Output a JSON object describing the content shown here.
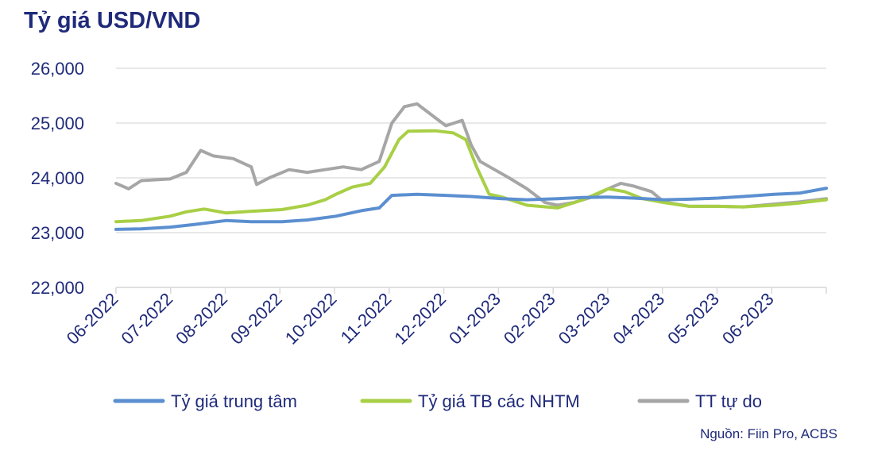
{
  "chart_data": {
    "type": "line",
    "title": "Tỷ giá USD/VND",
    "source": "Nguồn: Fiin Pro, ACBS",
    "ylim": [
      22000,
      26000
    ],
    "y_ticks": [
      "22,000",
      "23,000",
      "24,000",
      "25,000",
      "26,000"
    ],
    "y_tick_values": [
      22000,
      23000,
      24000,
      25000,
      26000
    ],
    "x_ticks": [
      "06-2022",
      "07-2022",
      "08-2022",
      "09-2022",
      "10-2022",
      "11-2022",
      "12-2022",
      "01-2023",
      "02-2023",
      "03-2023",
      "04-2023",
      "05-2023",
      "06-2023"
    ],
    "xlim": [
      "2022-06-01",
      "2023-06-30"
    ],
    "grid": true,
    "legend_position": "bottom",
    "colors": {
      "central": "#5b8fd0",
      "nhtm": "#a8cf45",
      "free": "#a6a6a6",
      "text": "#1f2a7a",
      "grid": "#d9d9d9"
    },
    "series": [
      {
        "name": "Tỷ giá trung tâm",
        "points": [
          [
            "2022-06-01",
            23060
          ],
          [
            "2022-06-15",
            23070
          ],
          [
            "2022-07-01",
            23100
          ],
          [
            "2022-07-15",
            23150
          ],
          [
            "2022-08-01",
            23220
          ],
          [
            "2022-08-15",
            23200
          ],
          [
            "2022-09-01",
            23200
          ],
          [
            "2022-09-15",
            23230
          ],
          [
            "2022-10-01",
            23300
          ],
          [
            "2022-10-15",
            23400
          ],
          [
            "2022-10-25",
            23450
          ],
          [
            "2022-11-01",
            23680
          ],
          [
            "2022-11-15",
            23700
          ],
          [
            "2022-12-01",
            23680
          ],
          [
            "2022-12-15",
            23660
          ],
          [
            "2023-01-01",
            23620
          ],
          [
            "2023-01-15",
            23600
          ],
          [
            "2023-02-01",
            23620
          ],
          [
            "2023-02-15",
            23640
          ],
          [
            "2023-03-01",
            23650
          ],
          [
            "2023-03-15",
            23630
          ],
          [
            "2023-04-01",
            23600
          ],
          [
            "2023-04-15",
            23610
          ],
          [
            "2023-05-01",
            23630
          ],
          [
            "2023-05-15",
            23660
          ],
          [
            "2023-06-01",
            23700
          ],
          [
            "2023-06-15",
            23720
          ],
          [
            "2023-06-30",
            23810
          ]
        ]
      },
      {
        "name": "Tỷ giá TB các NHTM",
        "points": [
          [
            "2022-06-01",
            23200
          ],
          [
            "2022-06-15",
            23220
          ],
          [
            "2022-07-01",
            23300
          ],
          [
            "2022-07-10",
            23380
          ],
          [
            "2022-07-20",
            23430
          ],
          [
            "2022-08-01",
            23360
          ],
          [
            "2022-08-15",
            23390
          ],
          [
            "2022-09-01",
            23420
          ],
          [
            "2022-09-15",
            23500
          ],
          [
            "2022-09-25",
            23600
          ],
          [
            "2022-10-01",
            23700
          ],
          [
            "2022-10-10",
            23830
          ],
          [
            "2022-10-20",
            23900
          ],
          [
            "2022-10-28",
            24200
          ],
          [
            "2022-11-05",
            24700
          ],
          [
            "2022-11-10",
            24850
          ],
          [
            "2022-11-25",
            24860
          ],
          [
            "2022-12-05",
            24820
          ],
          [
            "2022-12-12",
            24700
          ],
          [
            "2022-12-18",
            24200
          ],
          [
            "2022-12-25",
            23700
          ],
          [
            "2023-01-01",
            23650
          ],
          [
            "2023-01-15",
            23500
          ],
          [
            "2023-02-01",
            23450
          ],
          [
            "2023-02-15",
            23600
          ],
          [
            "2023-03-01",
            23800
          ],
          [
            "2023-03-10",
            23750
          ],
          [
            "2023-03-20",
            23620
          ],
          [
            "2023-04-01",
            23550
          ],
          [
            "2023-04-15",
            23480
          ],
          [
            "2023-05-01",
            23480
          ],
          [
            "2023-05-15",
            23470
          ],
          [
            "2023-06-01",
            23500
          ],
          [
            "2023-06-15",
            23540
          ],
          [
            "2023-06-30",
            23600
          ]
        ]
      },
      {
        "name": "TT tự do",
        "points": [
          [
            "2022-06-01",
            23900
          ],
          [
            "2022-06-08",
            23800
          ],
          [
            "2022-06-15",
            23950
          ],
          [
            "2022-07-01",
            23980
          ],
          [
            "2022-07-10",
            24100
          ],
          [
            "2022-07-18",
            24500
          ],
          [
            "2022-07-25",
            24400
          ],
          [
            "2022-08-05",
            24350
          ],
          [
            "2022-08-15",
            24200
          ],
          [
            "2022-08-18",
            23880
          ],
          [
            "2022-08-25",
            24000
          ],
          [
            "2022-09-05",
            24150
          ],
          [
            "2022-09-15",
            24100
          ],
          [
            "2022-09-25",
            24150
          ],
          [
            "2022-10-05",
            24200
          ],
          [
            "2022-10-15",
            24150
          ],
          [
            "2022-10-25",
            24300
          ],
          [
            "2022-11-01",
            25000
          ],
          [
            "2022-11-08",
            25300
          ],
          [
            "2022-11-15",
            25350
          ],
          [
            "2022-11-25",
            25100
          ],
          [
            "2022-12-01",
            24950
          ],
          [
            "2022-12-10",
            25050
          ],
          [
            "2022-12-15",
            24600
          ],
          [
            "2022-12-20",
            24300
          ],
          [
            "2022-12-28",
            24150
          ],
          [
            "2023-01-05",
            24000
          ],
          [
            "2023-01-15",
            23800
          ],
          [
            "2023-01-25",
            23550
          ],
          [
            "2023-02-01",
            23500
          ],
          [
            "2023-02-10",
            23550
          ],
          [
            "2023-02-20",
            23650
          ],
          [
            "2023-03-01",
            23800
          ],
          [
            "2023-03-08",
            23900
          ],
          [
            "2023-03-15",
            23850
          ],
          [
            "2023-03-25",
            23750
          ],
          [
            "2023-04-01",
            23560
          ],
          [
            "2023-04-15",
            23480
          ],
          [
            "2023-05-01",
            23480
          ],
          [
            "2023-05-15",
            23470
          ],
          [
            "2023-06-01",
            23520
          ],
          [
            "2023-06-15",
            23560
          ],
          [
            "2023-06-30",
            23620
          ]
        ]
      }
    ]
  }
}
